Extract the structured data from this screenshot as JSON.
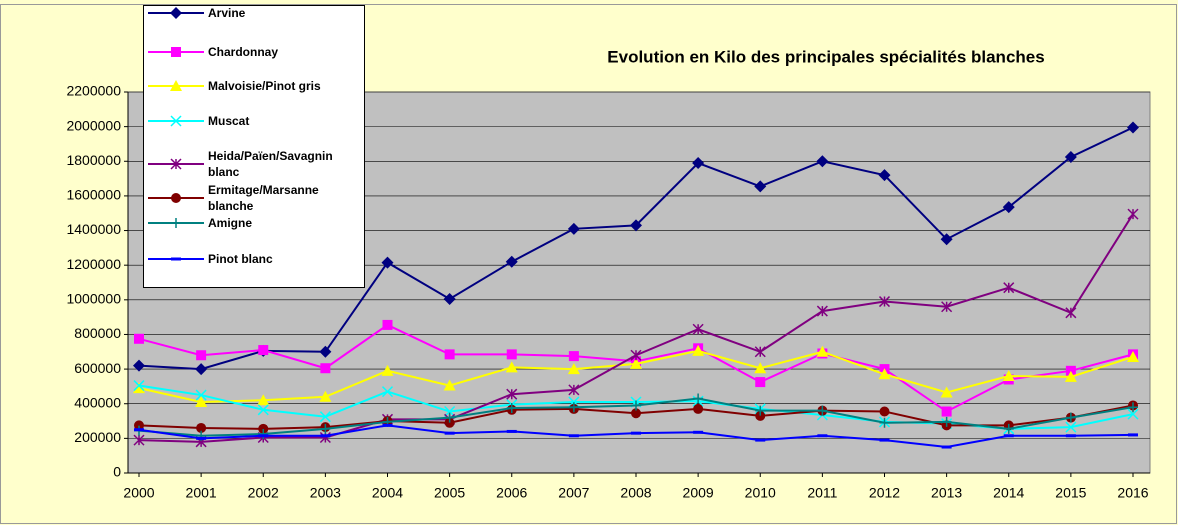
{
  "chart_data": {
    "type": "line",
    "title": "Evolution en Kilo des principales spécialités blanches",
    "categories": [
      "2000",
      "2001",
      "2002",
      "2003",
      "2004",
      "2005",
      "2006",
      "2007",
      "2008",
      "2009",
      "2010",
      "2011",
      "2012",
      "2013",
      "2014",
      "2015",
      "2016"
    ],
    "ylim": [
      0,
      2200000
    ],
    "yticks": [
      0,
      200000,
      400000,
      600000,
      800000,
      1000000,
      1200000,
      1400000,
      1600000,
      1800000,
      2000000,
      2200000
    ],
    "grid": true,
    "legend": "top-left",
    "series": [
      {
        "name": "Arvine",
        "color": "#000080",
        "marker": "diamond",
        "values": [
          620000,
          600000,
          705000,
          700000,
          1215000,
          1005000,
          1220000,
          1410000,
          1430000,
          1790000,
          1655000,
          1800000,
          1720000,
          1350000,
          1535000,
          1825000,
          1995000
        ]
      },
      {
        "name": "Chardonnay",
        "color": "#ff00ff",
        "marker": "square",
        "values": [
          775000,
          680000,
          710000,
          605000,
          855000,
          685000,
          685000,
          675000,
          645000,
          720000,
          525000,
          690000,
          600000,
          355000,
          540000,
          590000,
          685000
        ]
      },
      {
        "name": "Malvoisie/Pinot gris",
        "color": "#ffff00",
        "marker": "triangle",
        "values": [
          490000,
          410000,
          420000,
          440000,
          590000,
          505000,
          610000,
          600000,
          630000,
          705000,
          605000,
          700000,
          570000,
          465000,
          560000,
          555000,
          670000
        ]
      },
      {
        "name": "Muscat",
        "color": "#00ffff",
        "marker": "x",
        "values": [
          505000,
          450000,
          365000,
          325000,
          470000,
          355000,
          395000,
          410000,
          410000,
          415000,
          370000,
          335000,
          295000,
          285000,
          255000,
          265000,
          340000
        ]
      },
      {
        "name": "Heida/Païen/Savagnin blanc",
        "color": "#800080",
        "marker": "asterisk",
        "values": [
          190000,
          180000,
          205000,
          205000,
          310000,
          310000,
          455000,
          480000,
          680000,
          830000,
          700000,
          935000,
          990000,
          960000,
          1070000,
          925000,
          1495000
        ]
      },
      {
        "name": "Ermitage/Marsanne blanche",
        "color": "#800000",
        "marker": "circle",
        "values": [
          275000,
          260000,
          255000,
          265000,
          300000,
          290000,
          365000,
          370000,
          345000,
          370000,
          330000,
          360000,
          355000,
          275000,
          275000,
          320000,
          390000
        ]
      },
      {
        "name": "Amigne",
        "color": "#008080",
        "marker": "plus",
        "values": [
          245000,
          215000,
          225000,
          255000,
          295000,
          320000,
          375000,
          380000,
          390000,
          430000,
          360000,
          360000,
          290000,
          295000,
          255000,
          320000,
          380000
        ]
      },
      {
        "name": "Pinot blanc",
        "color": "#0000ff",
        "marker": "dash",
        "values": [
          250000,
          200000,
          215000,
          215000,
          275000,
          230000,
          240000,
          215000,
          230000,
          235000,
          190000,
          215000,
          190000,
          150000,
          215000,
          215000,
          220000
        ]
      }
    ]
  }
}
